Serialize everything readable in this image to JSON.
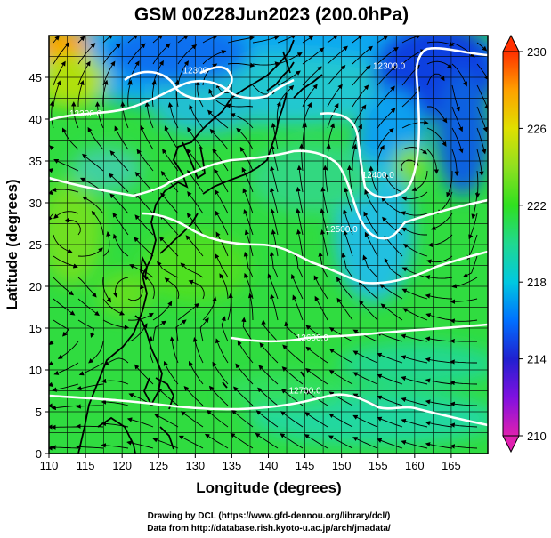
{
  "title": "GSM 00Z28Jun2023 (200.0hPa)",
  "x_axis": {
    "label": "Longitude (degrees)",
    "range": [
      110,
      170
    ],
    "ticks": [
      "110",
      "115",
      "120",
      "125",
      "130",
      "135",
      "140",
      "145",
      "150",
      "155",
      "160",
      "165"
    ]
  },
  "y_axis": {
    "label": "Latitude  (degrees)",
    "range": [
      0,
      50
    ],
    "ticks": [
      "0",
      "5",
      "10",
      "15",
      "20",
      "25",
      "30",
      "35",
      "40",
      "45"
    ]
  },
  "colorbar": {
    "range": [
      210,
      230
    ],
    "ticks": [
      "210",
      "214",
      "218",
      "222",
      "226",
      "230"
    ],
    "colors": [
      "#e020b0",
      "#8010e0",
      "#2020d0",
      "#0070ff",
      "#00c8e0",
      "#20d890",
      "#30e020",
      "#90e020",
      "#e0e000",
      "#ffa000",
      "#ff3000"
    ]
  },
  "contour_labels": [
    {
      "text": "12300",
      "lon": 130,
      "lat": 45.5
    },
    {
      "text": "12300.0",
      "lon": 115,
      "lat": 40.3
    },
    {
      "text": "12300.0",
      "lon": 156.5,
      "lat": 46
    },
    {
      "text": "12400.0",
      "lon": 155,
      "lat": 33
    },
    {
      "text": "12500.0",
      "lon": 150,
      "lat": 26.5
    },
    {
      "text": "12600.0",
      "lon": 146,
      "lat": 13.5
    },
    {
      "text": "12700.0",
      "lon": 145,
      "lat": 7.2
    }
  ],
  "credits": {
    "line1": "Drawing by DCL (https://www.gfd-dennou.org/library/dcl/)",
    "line2": "Data from http://database.rish.kyoto-u.ac.jp/arch/jmadata/"
  }
}
